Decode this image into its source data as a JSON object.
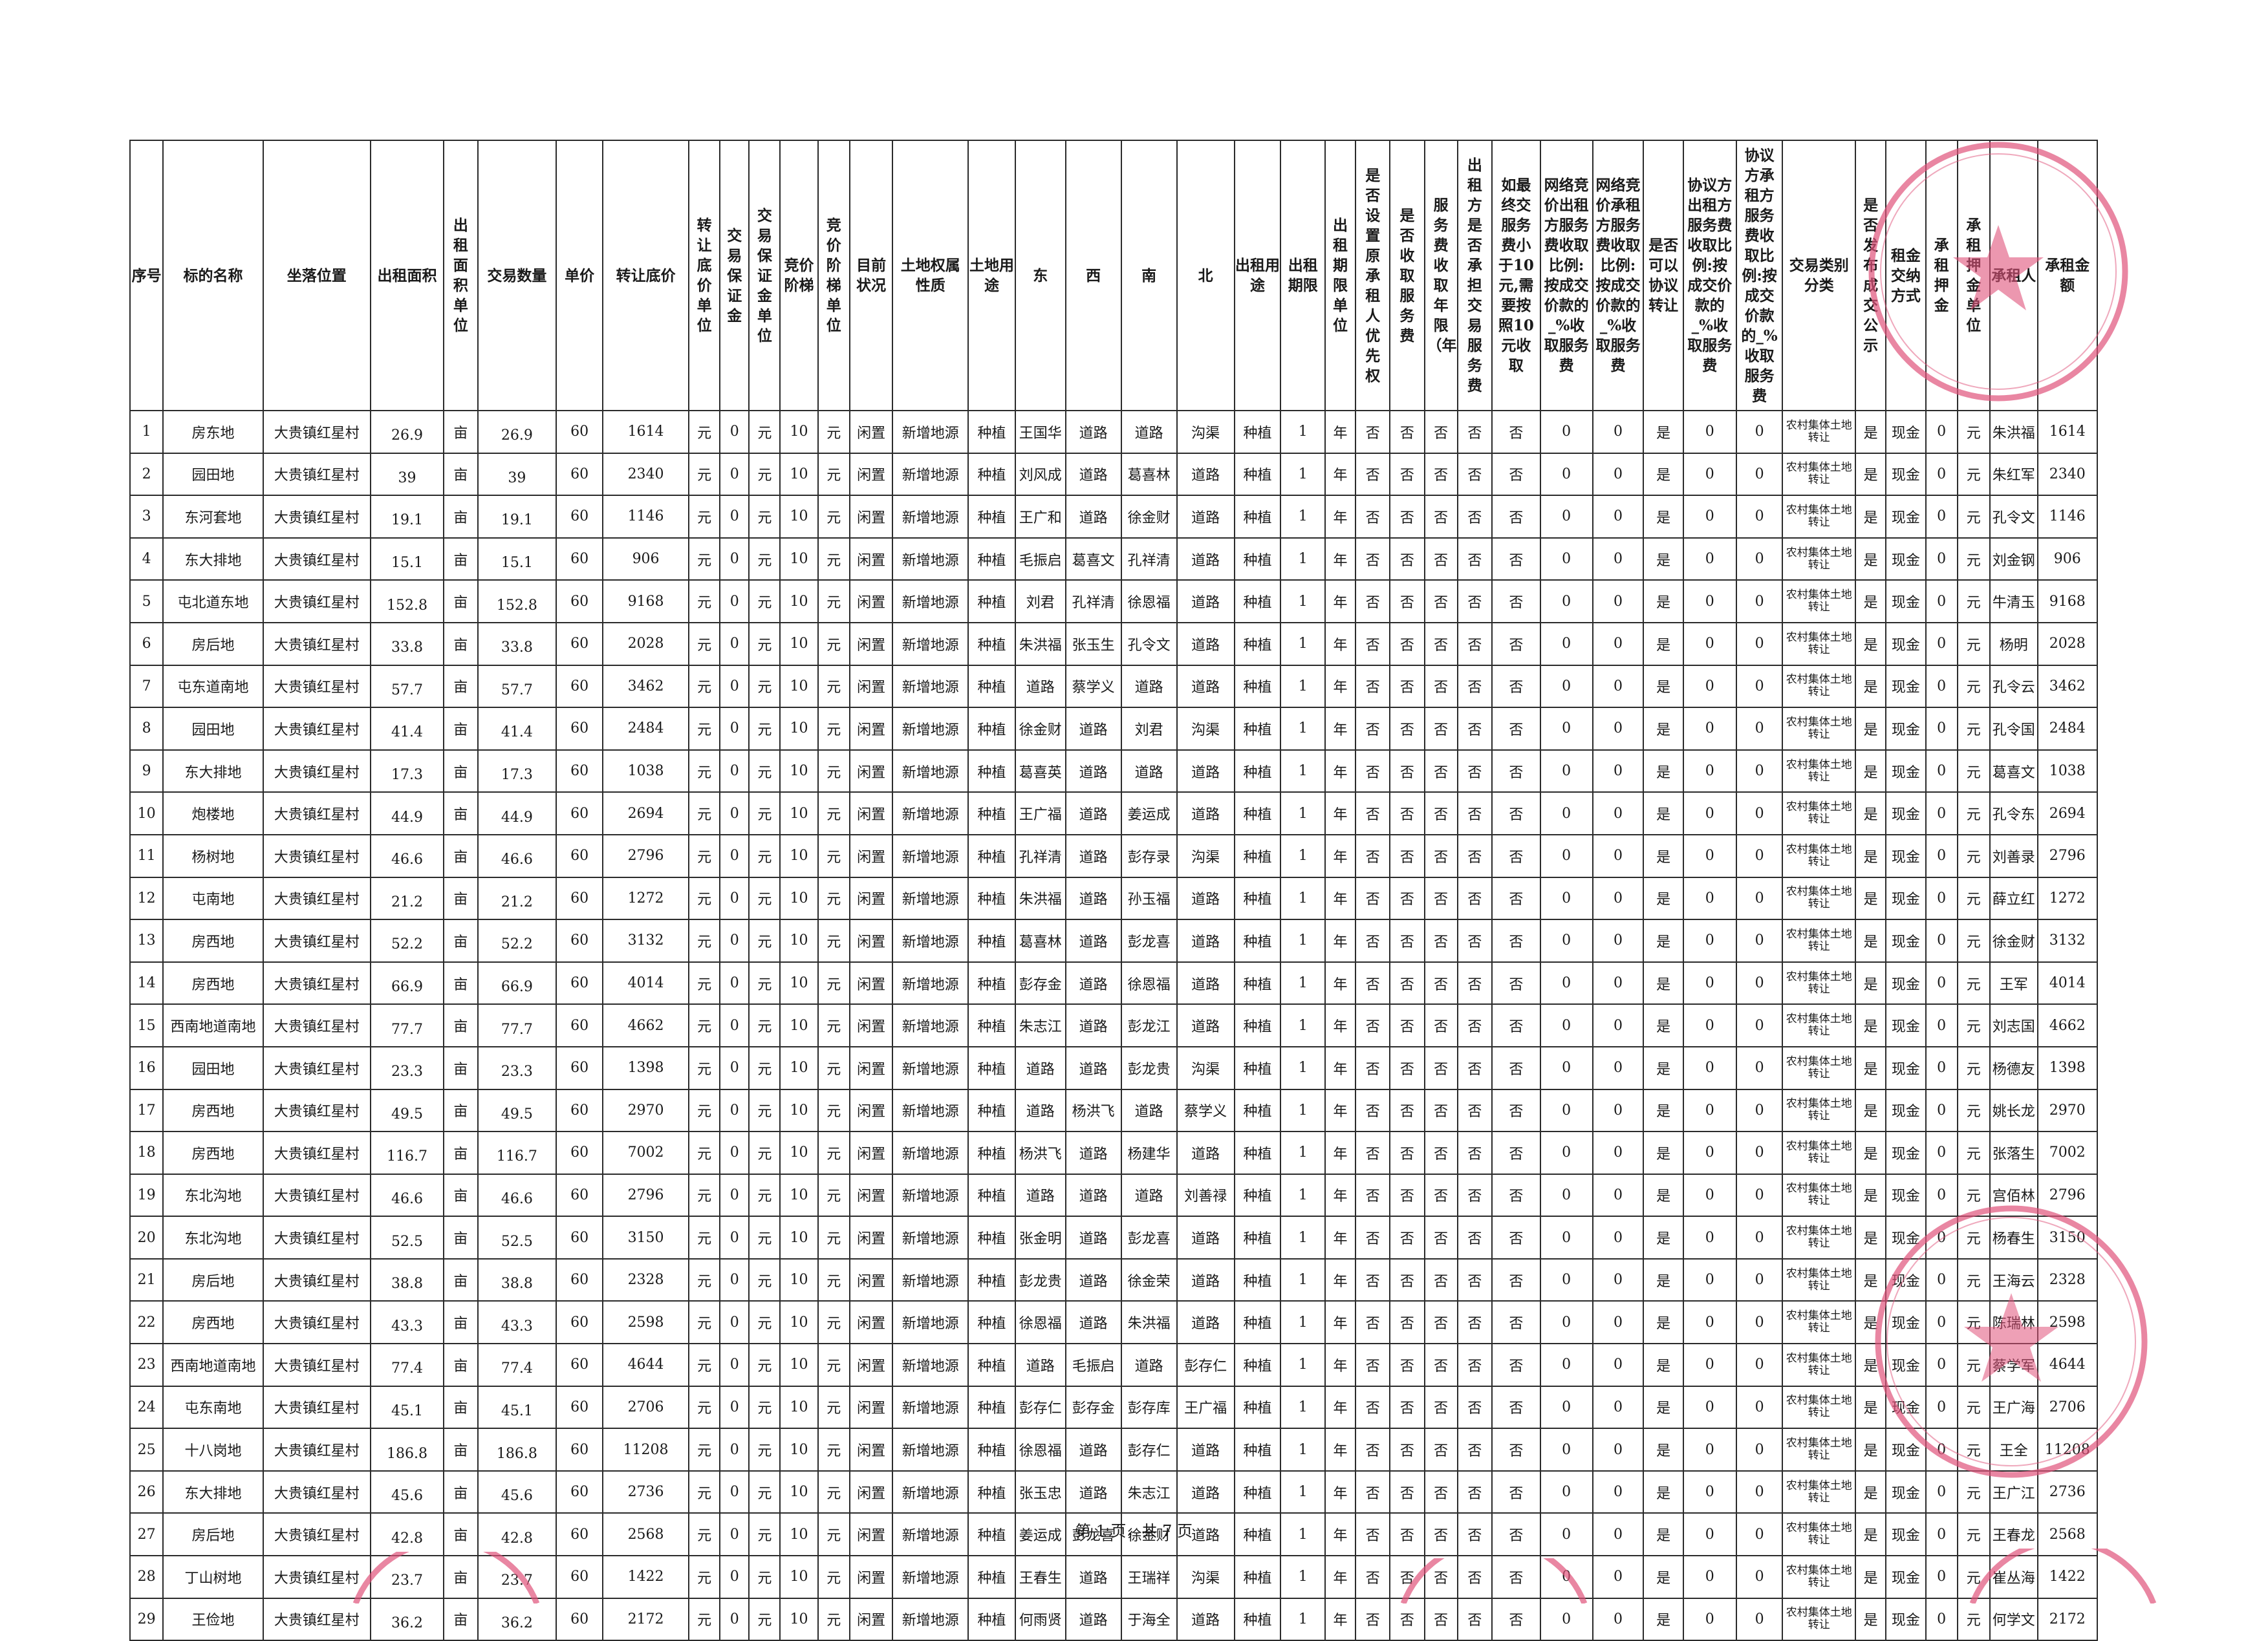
{
  "table": {
    "headers": [
      "序号",
      "标的名称",
      "坐落位置",
      "出租面积",
      "出租面积单位",
      "交易数量",
      "单价",
      "转让底价",
      "转让底价单位",
      "交易保证金",
      "交易保证金单位",
      "竞价阶梯",
      "竞价阶梯单位",
      "目前状况",
      "土地权属性质",
      "土地用途",
      "东",
      "西",
      "南",
      "北",
      "出租用途",
      "出租期限",
      "出租期限单位",
      "是否设置原承租人优先权",
      "是否收取服务费",
      "服务费收取年限（年）",
      "出租方是否承担交易服务费",
      "如最终交服务费小于10元,需要按照10元收取",
      "网络竞价出租方服务费收取比例:按成交价款的_%收取服务费",
      "网络竞价承租方服务费收取比例:按成交价款的_%收取服务费",
      "是否可以协议转让",
      "协议方出租方服务费收取比例:按成交价款的_%收取服务费",
      "协议方承租方服务费收取比例:按成交价款的_%收取服务费",
      "交易类别分类",
      "是否发布成交公示",
      "租金交纳方式",
      "承租押金",
      "承租押金单位",
      "承租人",
      "承租金额"
    ],
    "rows": [
      [
        "1",
        "房东地",
        "大贵镇红星村",
        "26.9",
        "亩",
        "26.9",
        "60",
        "1614",
        "元",
        "0",
        "元",
        "10",
        "元",
        "闲置",
        "新增地源",
        "种植",
        "王国华",
        "道路",
        "道路",
        "沟渠",
        "种植",
        "1",
        "年",
        "否",
        "否",
        "否",
        "否",
        "否",
        "0",
        "0",
        "是",
        "0",
        "0",
        "农村集体土地转让",
        "是",
        "现金",
        "0",
        "元",
        "朱洪福",
        "1614"
      ],
      [
        "2",
        "园田地",
        "大贵镇红星村",
        "39",
        "亩",
        "39",
        "60",
        "2340",
        "元",
        "0",
        "元",
        "10",
        "元",
        "闲置",
        "新增地源",
        "种植",
        "刘风成",
        "道路",
        "葛喜林",
        "道路",
        "种植",
        "1",
        "年",
        "否",
        "否",
        "否",
        "否",
        "否",
        "0",
        "0",
        "是",
        "0",
        "0",
        "农村集体土地转让",
        "是",
        "现金",
        "0",
        "元",
        "朱红军",
        "2340"
      ],
      [
        "3",
        "东河套地",
        "大贵镇红星村",
        "19.1",
        "亩",
        "19.1",
        "60",
        "1146",
        "元",
        "0",
        "元",
        "10",
        "元",
        "闲置",
        "新增地源",
        "种植",
        "王广和",
        "道路",
        "徐金财",
        "道路",
        "种植",
        "1",
        "年",
        "否",
        "否",
        "否",
        "否",
        "否",
        "0",
        "0",
        "是",
        "0",
        "0",
        "农村集体土地转让",
        "是",
        "现金",
        "0",
        "元",
        "孔令文",
        "1146"
      ],
      [
        "4",
        "东大排地",
        "大贵镇红星村",
        "15.1",
        "亩",
        "15.1",
        "60",
        "906",
        "元",
        "0",
        "元",
        "10",
        "元",
        "闲置",
        "新增地源",
        "种植",
        "毛振启",
        "葛喜文",
        "孔祥清",
        "道路",
        "种植",
        "1",
        "年",
        "否",
        "否",
        "否",
        "否",
        "否",
        "0",
        "0",
        "是",
        "0",
        "0",
        "农村集体土地转让",
        "是",
        "现金",
        "0",
        "元",
        "刘金钢",
        "906"
      ],
      [
        "5",
        "屯北道东地",
        "大贵镇红星村",
        "152.8",
        "亩",
        "152.8",
        "60",
        "9168",
        "元",
        "0",
        "元",
        "10",
        "元",
        "闲置",
        "新增地源",
        "种植",
        "刘君",
        "孔祥清",
        "徐恩福",
        "道路",
        "种植",
        "1",
        "年",
        "否",
        "否",
        "否",
        "否",
        "否",
        "0",
        "0",
        "是",
        "0",
        "0",
        "农村集体土地转让",
        "是",
        "现金",
        "0",
        "元",
        "牛清玉",
        "9168"
      ],
      [
        "6",
        "房后地",
        "大贵镇红星村",
        "33.8",
        "亩",
        "33.8",
        "60",
        "2028",
        "元",
        "0",
        "元",
        "10",
        "元",
        "闲置",
        "新增地源",
        "种植",
        "朱洪福",
        "张玉生",
        "孔令文",
        "道路",
        "种植",
        "1",
        "年",
        "否",
        "否",
        "否",
        "否",
        "否",
        "0",
        "0",
        "是",
        "0",
        "0",
        "农村集体土地转让",
        "是",
        "现金",
        "0",
        "元",
        "杨明",
        "2028"
      ],
      [
        "7",
        "屯东道南地",
        "大贵镇红星村",
        "57.7",
        "亩",
        "57.7",
        "60",
        "3462",
        "元",
        "0",
        "元",
        "10",
        "元",
        "闲置",
        "新增地源",
        "种植",
        "道路",
        "蔡学义",
        "道路",
        "道路",
        "种植",
        "1",
        "年",
        "否",
        "否",
        "否",
        "否",
        "否",
        "0",
        "0",
        "是",
        "0",
        "0",
        "农村集体土地转让",
        "是",
        "现金",
        "0",
        "元",
        "孔令云",
        "3462"
      ],
      [
        "8",
        "园田地",
        "大贵镇红星村",
        "41.4",
        "亩",
        "41.4",
        "60",
        "2484",
        "元",
        "0",
        "元",
        "10",
        "元",
        "闲置",
        "新增地源",
        "种植",
        "徐金财",
        "道路",
        "刘君",
        "沟渠",
        "种植",
        "1",
        "年",
        "否",
        "否",
        "否",
        "否",
        "否",
        "0",
        "0",
        "是",
        "0",
        "0",
        "农村集体土地转让",
        "是",
        "现金",
        "0",
        "元",
        "孔令国",
        "2484"
      ],
      [
        "9",
        "东大排地",
        "大贵镇红星村",
        "17.3",
        "亩",
        "17.3",
        "60",
        "1038",
        "元",
        "0",
        "元",
        "10",
        "元",
        "闲置",
        "新增地源",
        "种植",
        "葛喜英",
        "道路",
        "道路",
        "道路",
        "种植",
        "1",
        "年",
        "否",
        "否",
        "否",
        "否",
        "否",
        "0",
        "0",
        "是",
        "0",
        "0",
        "农村集体土地转让",
        "是",
        "现金",
        "0",
        "元",
        "葛喜文",
        "1038"
      ],
      [
        "10",
        "炮楼地",
        "大贵镇红星村",
        "44.9",
        "亩",
        "44.9",
        "60",
        "2694",
        "元",
        "0",
        "元",
        "10",
        "元",
        "闲置",
        "新增地源",
        "种植",
        "王广福",
        "道路",
        "姜运成",
        "道路",
        "种植",
        "1",
        "年",
        "否",
        "否",
        "否",
        "否",
        "否",
        "0",
        "0",
        "是",
        "0",
        "0",
        "农村集体土地转让",
        "是",
        "现金",
        "0",
        "元",
        "孔令东",
        "2694"
      ],
      [
        "11",
        "杨树地",
        "大贵镇红星村",
        "46.6",
        "亩",
        "46.6",
        "60",
        "2796",
        "元",
        "0",
        "元",
        "10",
        "元",
        "闲置",
        "新增地源",
        "种植",
        "孔祥清",
        "道路",
        "彭存录",
        "沟渠",
        "种植",
        "1",
        "年",
        "否",
        "否",
        "否",
        "否",
        "否",
        "0",
        "0",
        "是",
        "0",
        "0",
        "农村集体土地转让",
        "是",
        "现金",
        "0",
        "元",
        "刘善录",
        "2796"
      ],
      [
        "12",
        "屯南地",
        "大贵镇红星村",
        "21.2",
        "亩",
        "21.2",
        "60",
        "1272",
        "元",
        "0",
        "元",
        "10",
        "元",
        "闲置",
        "新增地源",
        "种植",
        "朱洪福",
        "道路",
        "孙玉福",
        "道路",
        "种植",
        "1",
        "年",
        "否",
        "否",
        "否",
        "否",
        "否",
        "0",
        "0",
        "是",
        "0",
        "0",
        "农村集体土地转让",
        "是",
        "现金",
        "0",
        "元",
        "薛立红",
        "1272"
      ],
      [
        "13",
        "房西地",
        "大贵镇红星村",
        "52.2",
        "亩",
        "52.2",
        "60",
        "3132",
        "元",
        "0",
        "元",
        "10",
        "元",
        "闲置",
        "新增地源",
        "种植",
        "葛喜林",
        "道路",
        "彭龙喜",
        "道路",
        "种植",
        "1",
        "年",
        "否",
        "否",
        "否",
        "否",
        "否",
        "0",
        "0",
        "是",
        "0",
        "0",
        "农村集体土地转让",
        "是",
        "现金",
        "0",
        "元",
        "徐金财",
        "3132"
      ],
      [
        "14",
        "房西地",
        "大贵镇红星村",
        "66.9",
        "亩",
        "66.9",
        "60",
        "4014",
        "元",
        "0",
        "元",
        "10",
        "元",
        "闲置",
        "新增地源",
        "种植",
        "彭存金",
        "道路",
        "徐恩福",
        "道路",
        "种植",
        "1",
        "年",
        "否",
        "否",
        "否",
        "否",
        "否",
        "0",
        "0",
        "是",
        "0",
        "0",
        "农村集体土地转让",
        "是",
        "现金",
        "0",
        "元",
        "王军",
        "4014"
      ],
      [
        "15",
        "西南地道南地",
        "大贵镇红星村",
        "77.7",
        "亩",
        "77.7",
        "60",
        "4662",
        "元",
        "0",
        "元",
        "10",
        "元",
        "闲置",
        "新增地源",
        "种植",
        "朱志江",
        "道路",
        "彭龙江",
        "道路",
        "种植",
        "1",
        "年",
        "否",
        "否",
        "否",
        "否",
        "否",
        "0",
        "0",
        "是",
        "0",
        "0",
        "农村集体土地转让",
        "是",
        "现金",
        "0",
        "元",
        "刘志国",
        "4662"
      ],
      [
        "16",
        "园田地",
        "大贵镇红星村",
        "23.3",
        "亩",
        "23.3",
        "60",
        "1398",
        "元",
        "0",
        "元",
        "10",
        "元",
        "闲置",
        "新增地源",
        "种植",
        "道路",
        "道路",
        "彭龙贵",
        "沟渠",
        "种植",
        "1",
        "年",
        "否",
        "否",
        "否",
        "否",
        "否",
        "0",
        "0",
        "是",
        "0",
        "0",
        "农村集体土地转让",
        "是",
        "现金",
        "0",
        "元",
        "杨德友",
        "1398"
      ],
      [
        "17",
        "房西地",
        "大贵镇红星村",
        "49.5",
        "亩",
        "49.5",
        "60",
        "2970",
        "元",
        "0",
        "元",
        "10",
        "元",
        "闲置",
        "新增地源",
        "种植",
        "道路",
        "杨洪飞",
        "道路",
        "蔡学义",
        "种植",
        "1",
        "年",
        "否",
        "否",
        "否",
        "否",
        "否",
        "0",
        "0",
        "是",
        "0",
        "0",
        "农村集体土地转让",
        "是",
        "现金",
        "0",
        "元",
        "姚长龙",
        "2970"
      ],
      [
        "18",
        "房西地",
        "大贵镇红星村",
        "116.7",
        "亩",
        "116.7",
        "60",
        "7002",
        "元",
        "0",
        "元",
        "10",
        "元",
        "闲置",
        "新增地源",
        "种植",
        "杨洪飞",
        "道路",
        "杨建华",
        "道路",
        "种植",
        "1",
        "年",
        "否",
        "否",
        "否",
        "否",
        "否",
        "0",
        "0",
        "是",
        "0",
        "0",
        "农村集体土地转让",
        "是",
        "现金",
        "0",
        "元",
        "张落生",
        "7002"
      ],
      [
        "19",
        "东北沟地",
        "大贵镇红星村",
        "46.6",
        "亩",
        "46.6",
        "60",
        "2796",
        "元",
        "0",
        "元",
        "10",
        "元",
        "闲置",
        "新增地源",
        "种植",
        "道路",
        "道路",
        "道路",
        "刘善禄",
        "种植",
        "1",
        "年",
        "否",
        "否",
        "否",
        "否",
        "否",
        "0",
        "0",
        "是",
        "0",
        "0",
        "农村集体土地转让",
        "是",
        "现金",
        "0",
        "元",
        "宫佰林",
        "2796"
      ],
      [
        "20",
        "东北沟地",
        "大贵镇红星村",
        "52.5",
        "亩",
        "52.5",
        "60",
        "3150",
        "元",
        "0",
        "元",
        "10",
        "元",
        "闲置",
        "新增地源",
        "种植",
        "张金明",
        "道路",
        "彭龙喜",
        "道路",
        "种植",
        "1",
        "年",
        "否",
        "否",
        "否",
        "否",
        "否",
        "0",
        "0",
        "是",
        "0",
        "0",
        "农村集体土地转让",
        "是",
        "现金",
        "0",
        "元",
        "杨春生",
        "3150"
      ],
      [
        "21",
        "房后地",
        "大贵镇红星村",
        "38.8",
        "亩",
        "38.8",
        "60",
        "2328",
        "元",
        "0",
        "元",
        "10",
        "元",
        "闲置",
        "新增地源",
        "种植",
        "彭龙贵",
        "道路",
        "徐金荣",
        "道路",
        "种植",
        "1",
        "年",
        "否",
        "否",
        "否",
        "否",
        "否",
        "0",
        "0",
        "是",
        "0",
        "0",
        "农村集体土地转让",
        "是",
        "现金",
        "0",
        "元",
        "王海云",
        "2328"
      ],
      [
        "22",
        "房西地",
        "大贵镇红星村",
        "43.3",
        "亩",
        "43.3",
        "60",
        "2598",
        "元",
        "0",
        "元",
        "10",
        "元",
        "闲置",
        "新增地源",
        "种植",
        "徐恩福",
        "道路",
        "朱洪福",
        "道路",
        "种植",
        "1",
        "年",
        "否",
        "否",
        "否",
        "否",
        "否",
        "0",
        "0",
        "是",
        "0",
        "0",
        "农村集体土地转让",
        "是",
        "现金",
        "0",
        "元",
        "陈瑞林",
        "2598"
      ],
      [
        "23",
        "西南地道南地",
        "大贵镇红星村",
        "77.4",
        "亩",
        "77.4",
        "60",
        "4644",
        "元",
        "0",
        "元",
        "10",
        "元",
        "闲置",
        "新增地源",
        "种植",
        "道路",
        "毛振启",
        "道路",
        "彭存仁",
        "种植",
        "1",
        "年",
        "否",
        "否",
        "否",
        "否",
        "否",
        "0",
        "0",
        "是",
        "0",
        "0",
        "农村集体土地转让",
        "是",
        "现金",
        "0",
        "元",
        "蔡学军",
        "4644"
      ],
      [
        "24",
        "屯东南地",
        "大贵镇红星村",
        "45.1",
        "亩",
        "45.1",
        "60",
        "2706",
        "元",
        "0",
        "元",
        "10",
        "元",
        "闲置",
        "新增地源",
        "种植",
        "彭存仁",
        "彭存金",
        "彭存库",
        "王广福",
        "种植",
        "1",
        "年",
        "否",
        "否",
        "否",
        "否",
        "否",
        "0",
        "0",
        "是",
        "0",
        "0",
        "农村集体土地转让",
        "是",
        "现金",
        "0",
        "元",
        "王广海",
        "2706"
      ],
      [
        "25",
        "十八岗地",
        "大贵镇红星村",
        "186.8",
        "亩",
        "186.8",
        "60",
        "11208",
        "元",
        "0",
        "元",
        "10",
        "元",
        "闲置",
        "新增地源",
        "种植",
        "徐恩福",
        "道路",
        "彭存仁",
        "道路",
        "种植",
        "1",
        "年",
        "否",
        "否",
        "否",
        "否",
        "否",
        "0",
        "0",
        "是",
        "0",
        "0",
        "农村集体土地转让",
        "是",
        "现金",
        "0",
        "元",
        "王全",
        "11208"
      ],
      [
        "26",
        "东大排地",
        "大贵镇红星村",
        "45.6",
        "亩",
        "45.6",
        "60",
        "2736",
        "元",
        "0",
        "元",
        "10",
        "元",
        "闲置",
        "新增地源",
        "种植",
        "张玉忠",
        "道路",
        "朱志江",
        "道路",
        "种植",
        "1",
        "年",
        "否",
        "否",
        "否",
        "否",
        "否",
        "0",
        "0",
        "是",
        "0",
        "0",
        "农村集体土地转让",
        "是",
        "现金",
        "0",
        "元",
        "王广江",
        "2736"
      ],
      [
        "27",
        "房后地",
        "大贵镇红星村",
        "42.8",
        "亩",
        "42.8",
        "60",
        "2568",
        "元",
        "0",
        "元",
        "10",
        "元",
        "闲置",
        "新增地源",
        "种植",
        "姜运成",
        "彭龙喜",
        "徐金财",
        "道路",
        "种植",
        "1",
        "年",
        "否",
        "否",
        "否",
        "否",
        "否",
        "0",
        "0",
        "是",
        "0",
        "0",
        "农村集体土地转让",
        "是",
        "现金",
        "0",
        "元",
        "王春龙",
        "2568"
      ],
      [
        "28",
        "丁山树地",
        "大贵镇红星村",
        "23.7",
        "亩",
        "23.7",
        "60",
        "1422",
        "元",
        "0",
        "元",
        "10",
        "元",
        "闲置",
        "新增地源",
        "种植",
        "王春生",
        "道路",
        "王瑞祥",
        "沟渠",
        "种植",
        "1",
        "年",
        "否",
        "否",
        "否",
        "否",
        "否",
        "0",
        "0",
        "是",
        "0",
        "0",
        "农村集体土地转让",
        "是",
        "现金",
        "0",
        "元",
        "崔丛海",
        "1422"
      ],
      [
        "29",
        "王俭地",
        "大贵镇红星村",
        "36.2",
        "亩",
        "36.2",
        "60",
        "2172",
        "元",
        "0",
        "元",
        "10",
        "元",
        "闲置",
        "新增地源",
        "种植",
        "何雨贤",
        "道路",
        "于海全",
        "道路",
        "种植",
        "1",
        "年",
        "否",
        "否",
        "否",
        "否",
        "否",
        "0",
        "0",
        "是",
        "0",
        "0",
        "农村集体土地转让",
        "是",
        "现金",
        "0",
        "元",
        "何学文",
        "2172"
      ]
    ]
  },
  "footer": {
    "page_label": "第 1 页，共 7 页"
  },
  "colors": {
    "seal": "#e0527a",
    "ink": "#1a1a1a",
    "rule": "#2b2b2b"
  }
}
